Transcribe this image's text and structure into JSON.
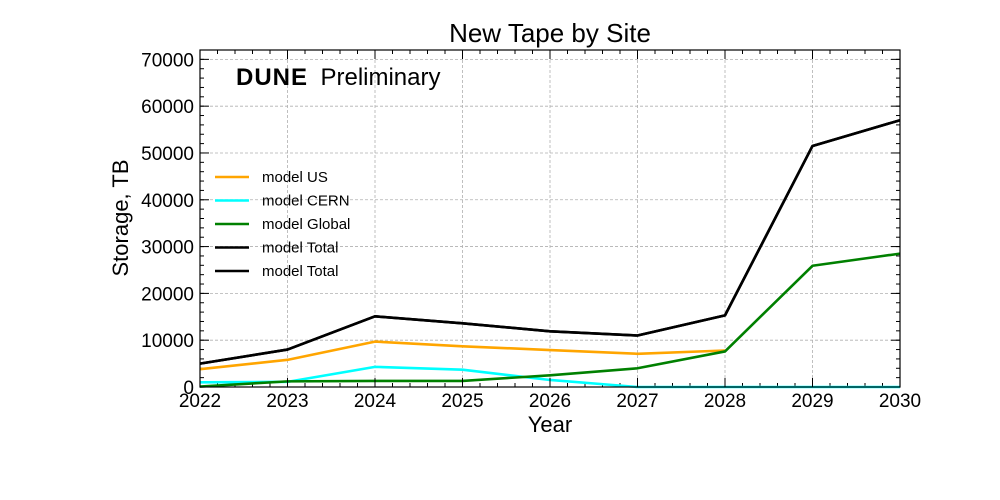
{
  "chart_data": {
    "type": "line",
    "title": "New Tape by Site",
    "xlabel": "Year",
    "ylabel": "Storage, TB",
    "xlim": [
      2022,
      2030
    ],
    "ylim": [
      0,
      72000
    ],
    "x": [
      2022,
      2023,
      2024,
      2025,
      2026,
      2027,
      2028,
      2029,
      2030
    ],
    "x_ticks": [
      "2022",
      "2023",
      "2024",
      "2025",
      "2026",
      "2027",
      "2028",
      "2029",
      "2030"
    ],
    "y_ticks": [
      "0",
      "10000",
      "20000",
      "30000",
      "40000",
      "50000",
      "60000",
      "70000"
    ],
    "y_tick_values": [
      0,
      10000,
      20000,
      30000,
      40000,
      50000,
      60000,
      70000
    ],
    "grid": true,
    "legend_position": "left",
    "watermark": {
      "bold": "DUNE",
      "text": "Preliminary"
    },
    "series": [
      {
        "name": "model US",
        "color": "#ffa500",
        "values": [
          3800,
          5800,
          9700,
          8700,
          7900,
          7100,
          7800,
          null,
          null
        ]
      },
      {
        "name": "model CERN",
        "color": "#00ffff",
        "values": [
          1000,
          1100,
          4300,
          3700,
          1500,
          0,
          0,
          0,
          0
        ]
      },
      {
        "name": "model Global",
        "color": "#008000",
        "values": [
          100,
          1200,
          1300,
          1300,
          2500,
          4000,
          7600,
          25900,
          28500
        ]
      },
      {
        "name": "model Total",
        "color": "#000000",
        "values": [
          5000,
          8000,
          15100,
          13600,
          11900,
          11000,
          15300,
          51500,
          57000
        ]
      },
      {
        "name": "model Total",
        "color": "#000000",
        "values": [
          5000,
          8000,
          15100,
          13600,
          11900,
          11000,
          15300,
          51500,
          57000
        ]
      }
    ]
  }
}
